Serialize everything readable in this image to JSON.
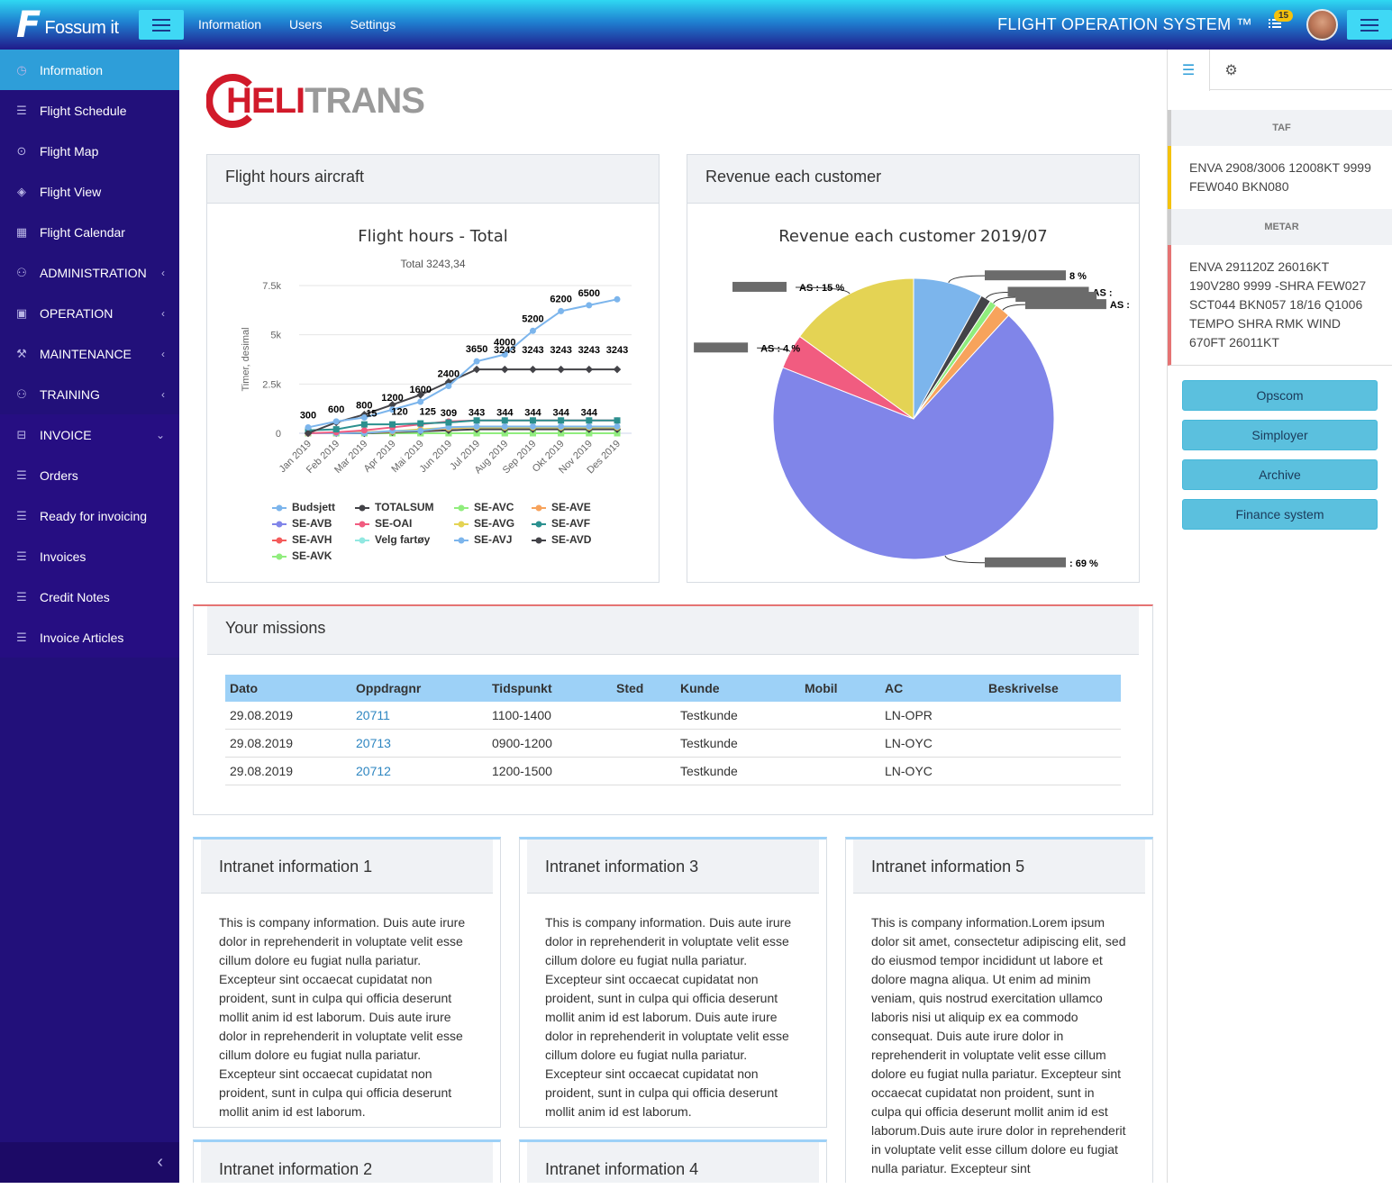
{
  "topbar": {
    "logo_text": "Fossum it",
    "nav": [
      "Information",
      "Users",
      "Settings"
    ],
    "system_title": "FLIGHT OPERATION SYSTEM ™",
    "notification_count": "15"
  },
  "sidebar": {
    "items": [
      {
        "label": "Information",
        "icon": "dashboard-icon",
        "active": true
      },
      {
        "label": "Flight Schedule",
        "icon": "list-icon"
      },
      {
        "label": "Flight Map",
        "icon": "map-pin-icon"
      },
      {
        "label": "Flight View",
        "icon": "layers-icon"
      },
      {
        "label": "Flight Calendar",
        "icon": "calendar-icon"
      },
      {
        "label": "ADMINISTRATION",
        "icon": "users-icon",
        "chevron": "‹"
      },
      {
        "label": "OPERATION",
        "icon": "briefcase-icon",
        "chevron": "‹"
      },
      {
        "label": "MAINTENANCE",
        "icon": "wrench-icon",
        "chevron": "‹"
      },
      {
        "label": "TRAINING",
        "icon": "users-icon",
        "chevron": "‹"
      },
      {
        "label": "INVOICE",
        "icon": "inbox-icon",
        "chevron": "⌄"
      },
      {
        "label": "Orders",
        "icon": "list-icon"
      },
      {
        "label": "Ready for invoicing",
        "icon": "list-icon"
      },
      {
        "label": "Invoices",
        "icon": "list-icon"
      },
      {
        "label": "Credit Notes",
        "icon": "list-icon"
      },
      {
        "label": "Invoice Articles",
        "icon": "list-icon"
      }
    ]
  },
  "brand": {
    "heli": "HELI",
    "trans": "TRANS"
  },
  "flight_card": {
    "title": "Flight hours aircraft"
  },
  "revenue_card": {
    "title": "Revenue each customer"
  },
  "chart_data": [
    {
      "type": "line",
      "title": "Flight hours - Total",
      "subtitle": "Total 3243,34",
      "ylabel": "Timer, desimal",
      "xlabel": "",
      "categories": [
        "Jan 2019",
        "Feb 2019",
        "Mar 2019",
        "Apr 2019",
        "Mai 2019",
        "Jun 2019",
        "Jul 2019",
        "Aug 2019",
        "Sep 2019",
        "Okt 2019",
        "Nov 2019",
        "Des 2019"
      ],
      "y_ticks": [
        "0",
        "2.5k",
        "5k",
        "7.5k"
      ],
      "ylim": [
        0,
        7500
      ],
      "series": [
        {
          "name": "Budsjett",
          "color": "#7cb5ec",
          "values": [
            300,
            600,
            800,
            1200,
            1600,
            2400,
            3650,
            4000,
            5200,
            6200,
            6500,
            6800
          ]
        },
        {
          "name": "TOTALSUM",
          "color": "#434348",
          "values": [
            0,
            550,
            950,
            1450,
            1950,
            2600,
            3243,
            3243,
            3243,
            3243,
            3243,
            3243
          ]
        },
        {
          "name": "SE-AVC",
          "color": "#90ed7d",
          "values": [
            0,
            0,
            0,
            0,
            0,
            0,
            0,
            0,
            0,
            0,
            0,
            0
          ]
        },
        {
          "name": "SE-AVE",
          "color": "#f7a35c",
          "values": [
            0,
            10,
            30,
            80,
            150,
            250,
            300,
            300,
            300,
            300,
            300,
            300
          ]
        },
        {
          "name": "SE-AVB",
          "color": "#8085e9",
          "values": [
            0,
            0,
            0,
            0,
            0,
            0,
            0,
            0,
            0,
            0,
            0,
            0
          ]
        },
        {
          "name": "SE-OAI",
          "color": "#f15c80",
          "values": [
            0,
            50,
            150,
            300,
            450,
            600,
            650,
            650,
            650,
            650,
            650,
            650
          ]
        },
        {
          "name": "SE-AVG",
          "color": "#e4d354",
          "values": [
            0,
            0,
            50,
            100,
            200,
            280,
            300,
            300,
            300,
            300,
            300,
            300
          ]
        },
        {
          "name": "SE-AVF",
          "color": "#2b908f",
          "values": [
            150,
            200,
            450,
            450,
            500,
            550,
            650,
            650,
            650,
            650,
            650,
            650
          ]
        },
        {
          "name": "SE-AVH",
          "color": "#f45b5b",
          "values": [
            0,
            0,
            0,
            0,
            0,
            0,
            0,
            0,
            0,
            0,
            0,
            0
          ]
        },
        {
          "name": "Velg fartøy",
          "color": "#91e8e1",
          "values": [
            0,
            0,
            0,
            0,
            0,
            0,
            0,
            0,
            0,
            0,
            0,
            0
          ]
        },
        {
          "name": "SE-AVJ",
          "color": "#7cb5ec",
          "values": [
            0,
            0,
            15,
            120,
            125,
            309,
            343,
            344,
            344,
            344,
            344,
            344
          ]
        },
        {
          "name": "SE-AVD",
          "color": "#434348",
          "values": [
            0,
            0,
            0,
            50,
            100,
            150,
            200,
            200,
            200,
            200,
            200,
            200
          ]
        },
        {
          "name": "SE-AVK",
          "color": "#90ed7d",
          "values": [
            0,
            0,
            0,
            0,
            0,
            0,
            0,
            0,
            0,
            0,
            0,
            0
          ]
        }
      ],
      "data_labels": {
        "budget": [
          "300",
          "600",
          "800",
          "1200",
          "1600",
          "2400",
          "3650",
          "4000",
          "5200",
          "6200",
          "6500"
        ],
        "total": [
          "3243",
          "3243",
          "3243",
          "3243",
          "3243"
        ],
        "avj": [
          "15",
          "120",
          "125",
          "309",
          "343",
          "344",
          "344",
          "344",
          "344"
        ]
      }
    },
    {
      "type": "pie",
      "title": "Revenue each customer 2019/07",
      "slices": [
        {
          "label": "8 %",
          "value": 8,
          "color": "#7cb5ec"
        },
        {
          "label": "AS :",
          "value": 1.2,
          "color": "#434348"
        },
        {
          "label": "",
          "value": 0.8,
          "color": "#90ed7d"
        },
        {
          "label": "AS :",
          "value": 1.8,
          "color": "#f7a35c"
        },
        {
          "label": "",
          "value": 0,
          "color": "#8085e9"
        },
        {
          "label": ": 69 %",
          "value": 69,
          "color": "#8085e9"
        },
        {
          "label": "AS : 4 %",
          "value": 4,
          "color": "#f15c80"
        },
        {
          "label": "AS : 15 %",
          "value": 15,
          "color": "#e4d354"
        }
      ]
    }
  ],
  "missions": {
    "title": "Your missions",
    "columns": [
      "Dato",
      "Oppdragnr",
      "Tidspunkt",
      "Sted",
      "Kunde",
      "Mobil",
      "AC",
      "Beskrivelse"
    ],
    "rows": [
      [
        "29.08.2019",
        "20711",
        "1100-1400",
        "",
        "Testkunde",
        "",
        "LN-OPR",
        ""
      ],
      [
        "29.08.2019",
        "20713",
        "0900-1200",
        "",
        "Testkunde",
        "",
        "LN-OYC",
        ""
      ],
      [
        "29.08.2019",
        "20712",
        "1200-1500",
        "",
        "Testkunde",
        "",
        "LN-OYC",
        ""
      ]
    ]
  },
  "info_cards": [
    {
      "title": "Intranet information 1",
      "body": "This is company information. Duis aute irure dolor in reprehenderit in voluptate velit esse cillum dolore eu fugiat nulla pariatur. Excepteur sint occaecat cupidatat non proident, sunt in culpa qui officia deserunt mollit anim id est laborum. Duis aute irure dolor in reprehenderit in voluptate velit esse cillum dolore eu fugiat nulla pariatur. Excepteur sint occaecat cupidatat non proident, sunt in culpa qui officia deserunt mollit anim id est laborum."
    },
    {
      "title": "Intranet information 3",
      "body": "This is company information. Duis aute irure dolor in reprehenderit in voluptate velit esse cillum dolore eu fugiat nulla pariatur. Excepteur sint occaecat cupidatat non proident, sunt in culpa qui officia deserunt mollit anim id est laborum. Duis aute irure dolor in reprehenderit in voluptate velit esse cillum dolore eu fugiat nulla pariatur. Excepteur sint occaecat cupidatat non proident, sunt in culpa qui officia deserunt mollit anim id est laborum."
    },
    {
      "title": "Intranet information 5",
      "body": "This is company information.Lorem ipsum dolor sit amet, consectetur adipiscing elit, sed do eiusmod tempor incididunt ut labore et dolore magna aliqua. Ut enim ad minim veniam, quis nostrud exercitation ullamco laboris nisi ut aliquip ex ea commodo consequat. Duis aute irure dolor in reprehenderit in voluptate velit esse cillum dolore eu fugiat nulla pariatur. Excepteur sint occaecat cupidatat non proident, sunt in culpa qui officia deserunt mollit anim id est laborum.Duis aute irure dolor in reprehenderit in voluptate velit esse cillum dolore eu fugiat nulla pariatur. Excepteur sint"
    },
    {
      "title": "Intranet information 2",
      "body": ""
    },
    {
      "title": "Intranet information 4",
      "body": ""
    }
  ],
  "right_panel": {
    "taf_title": "TAF",
    "taf_text": "ENVA 2908/3006 12008KT 9999 FEW040 BKN080",
    "metar_title": "METAR",
    "metar_text": "ENVA 291120Z 26016KT 190V280 9999 -SHRA FEW027 SCT044 BKN057 18/16 Q1006 TEMPO SHRA RMK WIND 670FT 26011KT",
    "buttons": [
      "Opscom",
      "Simployer",
      "Archive",
      "Finance system"
    ]
  }
}
